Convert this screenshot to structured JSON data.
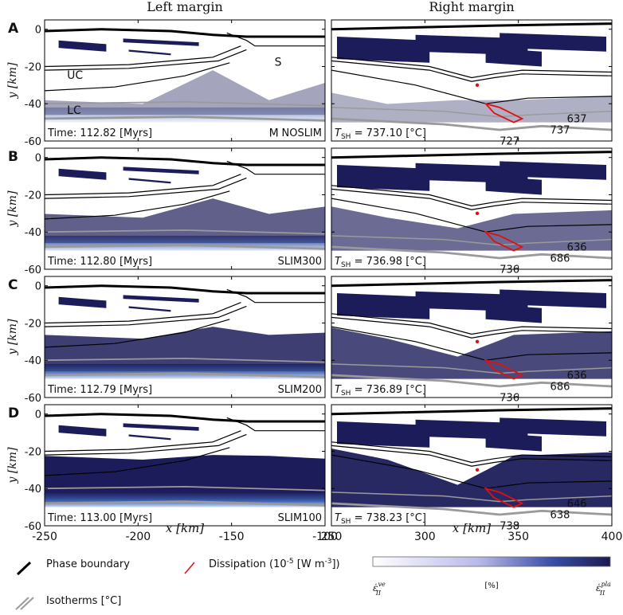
{
  "figure": {
    "columns": [
      "Left margin",
      "Right margin"
    ],
    "ylabel": "y [km]",
    "xlabel": "x [km]",
    "left_x_ticks": [
      "-250",
      "-200",
      "-150",
      "-100"
    ],
    "right_x_ticks": [
      "250",
      "300",
      "350",
      "400"
    ],
    "y_ticks": [
      "0",
      "-20",
      "-40",
      "-60"
    ]
  },
  "panels": [
    {
      "letter": "A",
      "time": "Time: 112.82 [Myrs]",
      "model": "NOSLIM",
      "tsh": "= 737.10 [°C]",
      "layer_labels": [
        "S",
        "UC",
        "LC",
        "M"
      ],
      "iso_labels": [
        "637",
        "737",
        "727"
      ],
      "strain_level": 0.15
    },
    {
      "letter": "B",
      "time": "Time: 112.80 [Myrs]",
      "model": "SLIM300",
      "tsh": "= 736.98 [°C]",
      "iso_labels": [
        "636",
        "686",
        "736"
      ],
      "strain_level": 0.45
    },
    {
      "letter": "C",
      "time": "Time: 112.79 [Myrs]",
      "model": "SLIM200",
      "tsh": "= 736.89 [°C]",
      "iso_labels": [
        "636",
        "686",
        "736"
      ],
      "strain_level": 0.6
    },
    {
      "letter": "D",
      "time": "Time: 113.00 [Myrs]",
      "model": "SLIM100",
      "tsh": "= 738.23 [°C]",
      "iso_labels": [
        "646",
        "638",
        "738"
      ],
      "strain_level": 0.75
    }
  ],
  "legend": {
    "phase_boundary": "Phase boundary",
    "isotherms": "Isotherms [°C]",
    "dissipation": "Dissipation (10",
    "dissipation_exp": "-5",
    "dissipation_unit": " [W m",
    "dissipation_unit_exp": "-3",
    "dissipation_end": "])",
    "colorbar_mid": "[%]",
    "colorbar_left": "ε̇",
    "colorbar_left_sup": "ve",
    "colorbar_left_sub": "II",
    "colorbar_right": "ε̇",
    "colorbar_right_sup": "pla",
    "colorbar_right_sub": "II"
  },
  "colors": {
    "strain": "#1c1c5a",
    "dissipation": "#e01010",
    "isotherm": "#9a9a9a",
    "phase": "#000000"
  },
  "chart_data": {
    "type": "heatmap",
    "x_left": [
      -250,
      -100
    ],
    "x_right": [
      250,
      400
    ],
    "ylim": [
      -60,
      5
    ]
  }
}
